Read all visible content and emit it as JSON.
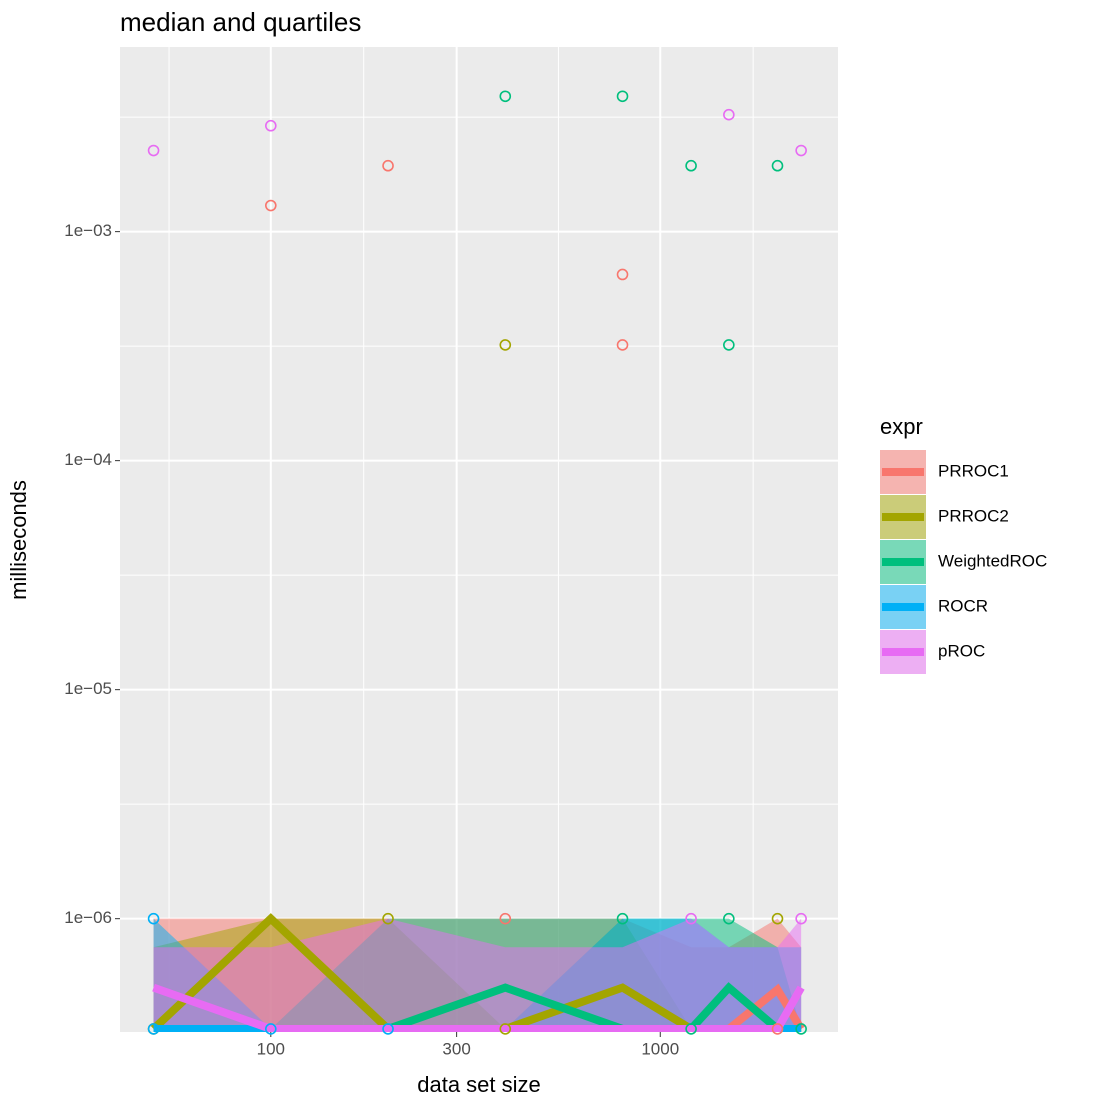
{
  "chart_data": {
    "type": "ribbon-line",
    "title": "median and quartiles",
    "x_label": "data set size",
    "y_label": "milliseconds",
    "legend_title": "expr",
    "log_x": true,
    "log_y": true,
    "grid": true,
    "legend_position": "right",
    "xlim": [
      41,
      2860
    ],
    "ylim": [
      3.2e-07,
      0.0064
    ],
    "xticks": [
      100,
      300,
      1000
    ],
    "xminorticks": [
      54.8,
      173.2,
      547.7,
      1732
    ],
    "yticks": [
      {
        "value": 1e-06,
        "label": "1e−06"
      },
      {
        "value": 1e-05,
        "label": "1e−05"
      },
      {
        "value": 0.0001,
        "label": "1e−04"
      },
      {
        "value": 0.001,
        "label": "1e−03"
      }
    ],
    "yminorticks": [
      3.162e-06,
      3.162e-05,
      0.0003162,
      0.003162
    ],
    "x": [
      50,
      100,
      200,
      400,
      800,
      1200,
      1500,
      2000,
      2300
    ],
    "series": [
      {
        "name": "PRROC1",
        "color": "#F8766D",
        "values": [
          3.3e-07,
          3.3e-07,
          3.3e-07,
          3.3e-07,
          3.3e-07,
          3.3e-07,
          3.3e-07,
          4.9e-07,
          3.3e-07
        ],
        "q1": [
          3.3e-07,
          3.3e-07,
          3.3e-07,
          3.3e-07,
          3.3e-07,
          3.3e-07,
          3.3e-07,
          3.3e-07,
          3.3e-07
        ],
        "q3": [
          1e-06,
          1e-06,
          1e-06,
          1e-06,
          1e-06,
          7.5e-07,
          7.5e-07,
          1e-06,
          7.5e-07
        ],
        "points_x": [
          100,
          200,
          800,
          800,
          400,
          2000
        ],
        "points_y": [
          0.0013,
          0.00194,
          0.00065,
          0.00032,
          1e-06,
          3.3e-07
        ]
      },
      {
        "name": "PRROC2",
        "color": "#A3A500",
        "values": [
          3.3e-07,
          1e-06,
          3.3e-07,
          3.3e-07,
          5e-07,
          3.3e-07,
          3.3e-07,
          3.3e-07,
          3.3e-07
        ],
        "q1": [
          3.3e-07,
          3.3e-07,
          3.3e-07,
          3.3e-07,
          3.3e-07,
          3.3e-07,
          3.3e-07,
          3.3e-07,
          3.3e-07
        ],
        "q3": [
          7.5e-07,
          1e-06,
          1e-06,
          3.3e-07,
          1e-06,
          3.3e-07,
          3.3e-07,
          3.3e-07,
          3.3e-07
        ],
        "points_x": [
          400,
          200,
          2000,
          50,
          400
        ],
        "points_y": [
          0.00032,
          1e-06,
          1e-06,
          3.3e-07,
          3.3e-07
        ]
      },
      {
        "name": "WeightedROC",
        "color": "#00BF7D",
        "values": [
          3.3e-07,
          3.3e-07,
          3.3e-07,
          5e-07,
          3.3e-07,
          3.3e-07,
          5e-07,
          3.3e-07,
          3.3e-07
        ],
        "q1": [
          3.3e-07,
          3.3e-07,
          3.3e-07,
          3.3e-07,
          3.3e-07,
          3.3e-07,
          3.3e-07,
          3.3e-07,
          3.3e-07
        ],
        "q3": [
          3.3e-07,
          3.3e-07,
          1e-06,
          1e-06,
          1e-06,
          1e-06,
          1e-06,
          7.5e-07,
          3.3e-07
        ],
        "points_x": [
          400,
          800,
          1200,
          1500,
          2000,
          800,
          1500,
          1200,
          2300
        ],
        "points_y": [
          0.0039,
          0.0039,
          0.00194,
          0.00032,
          0.00194,
          1e-06,
          1e-06,
          3.3e-07,
          3.3e-07
        ]
      },
      {
        "name": "ROCR",
        "color": "#00B0F6",
        "values": [
          3.3e-07,
          3.3e-07,
          3.3e-07,
          3.3e-07,
          3.3e-07,
          3.3e-07,
          3.3e-07,
          3.3e-07,
          3.3e-07
        ],
        "q1": [
          3.3e-07,
          3.3e-07,
          3.3e-07,
          3.3e-07,
          3.3e-07,
          3.3e-07,
          3.3e-07,
          3.3e-07,
          3.3e-07
        ],
        "q3": [
          1e-06,
          3.3e-07,
          3.3e-07,
          3.3e-07,
          1e-06,
          1e-06,
          7.5e-07,
          7.5e-07,
          7.5e-07
        ],
        "points_x": [
          50,
          50,
          100,
          200
        ],
        "points_y": [
          1e-06,
          3.3e-07,
          3.3e-07,
          3.3e-07
        ]
      },
      {
        "name": "pROC",
        "color": "#E76BF3",
        "values": [
          5e-07,
          3.3e-07,
          3.3e-07,
          3.3e-07,
          3.3e-07,
          3.3e-07,
          3.3e-07,
          3.3e-07,
          5e-07
        ],
        "q1": [
          3.3e-07,
          3.3e-07,
          3.3e-07,
          3.3e-07,
          3.3e-07,
          3.3e-07,
          3.3e-07,
          3.3e-07,
          3.3e-07
        ],
        "q3": [
          7.5e-07,
          7.5e-07,
          1e-06,
          7.5e-07,
          7.5e-07,
          1e-06,
          7.5e-07,
          7.5e-07,
          1e-06
        ],
        "points_x": [
          50,
          100,
          1500,
          2300,
          1200,
          2300
        ],
        "points_y": [
          0.00226,
          0.0029,
          0.00324,
          0.00226,
          1e-06,
          1e-06
        ]
      }
    ]
  }
}
